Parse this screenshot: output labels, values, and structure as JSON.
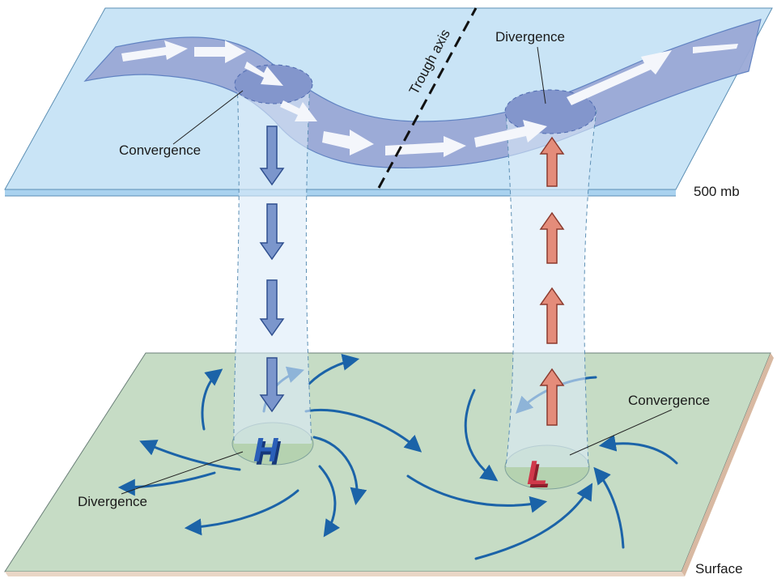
{
  "labels": {
    "upper_convergence": "Convergence",
    "upper_divergence": "Divergence",
    "trough_axis": "Trough axis",
    "level_500": "500 mb",
    "surface_divergence": "Divergence",
    "surface_convergence": "Convergence",
    "level_surface": "Surface",
    "high_symbol": "H",
    "low_symbol": "L"
  },
  "colors": {
    "upper_plane": "#c9e4f6",
    "surface_plane": "#c6dcc5",
    "jet_stream": "#9aa9d6",
    "column": "#dcebf8",
    "sinking_arrow": "#7b96cc",
    "rising_arrow": "#e48c7a",
    "flow_arrow": "#1b63a8",
    "high": "#2a5fb8",
    "low": "#d0384a"
  }
}
